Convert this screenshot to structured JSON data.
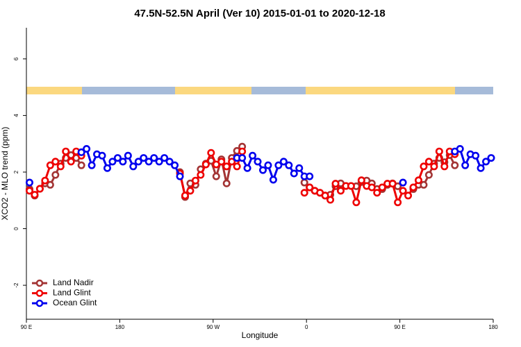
{
  "chart_data": {
    "type": "line",
    "title": "47.5N-52.5N April (Ver 10)   2015-01-01 to 2020-12-18",
    "x_label": "Longitude",
    "y_label": "XCO2 - MLO trend (ppm)",
    "xlim": [
      90,
      540
    ],
    "ylim": [
      -3.2,
      7.1
    ],
    "xticks": [
      {
        "value": 90,
        "label": "90 E"
      },
      {
        "value": 180,
        "label": "180"
      },
      {
        "value": 270,
        "label": "90 W"
      },
      {
        "value": 360,
        "label": "0"
      },
      {
        "value": 450,
        "label": "90 E"
      },
      {
        "value": 540,
        "label": "180"
      }
    ],
    "yticks": [
      -2,
      0,
      2,
      4,
      6
    ],
    "legend": "bottom-left",
    "x": [
      93,
      98,
      103,
      108,
      113,
      118,
      123,
      128,
      133,
      138,
      143,
      148,
      153,
      158,
      163,
      168,
      173,
      178,
      183,
      188,
      193,
      198,
      203,
      208,
      213,
      218,
      223,
      228,
      233,
      238,
      243,
      248,
      253,
      258,
      263,
      268,
      273,
      278,
      283,
      288,
      293,
      298,
      303,
      308,
      313,
      318,
      323,
      328,
      333,
      338,
      343,
      348,
      353,
      358,
      363,
      368,
      373,
      378,
      383,
      388,
      393,
      398,
      403,
      408,
      413,
      418,
      423,
      428,
      433,
      438,
      443,
      448,
      453,
      458,
      463,
      468,
      473,
      478,
      483,
      488,
      493,
      498,
      503,
      508,
      513,
      518,
      523,
      528,
      533,
      538
    ],
    "series": [
      {
        "name": "Land Nadir",
        "color": "#a33434",
        "values": [
          1.4,
          1.17,
          1.41,
          1.6,
          1.55,
          1.9,
          2.3,
          2.5,
          2.6,
          2.5,
          2.24,
          null,
          null,
          null,
          null,
          null,
          null,
          null,
          null,
          null,
          null,
          null,
          null,
          null,
          null,
          null,
          null,
          null,
          null,
          2.0,
          1.12,
          1.6,
          1.55,
          2.1,
          2.3,
          2.4,
          1.85,
          2.45,
          1.6,
          2.5,
          2.75,
          2.9,
          null,
          null,
          null,
          null,
          null,
          null,
          null,
          null,
          null,
          null,
          null,
          1.63,
          1.46,
          1.34,
          1.27,
          1.17,
          1.2,
          1.5,
          1.6,
          1.51,
          1.51,
          1.5,
          1.65,
          1.7,
          1.6,
          1.4,
          1.4,
          1.55,
          1.6,
          1.5,
          null,
          null,
          1.4,
          1.55,
          1.55,
          1.9,
          2.3,
          2.5,
          2.35,
          2.6,
          2.24,
          null,
          null,
          null,
          null,
          null,
          null,
          null
        ]
      },
      {
        "name": "Land Glint",
        "color": "#ee0000",
        "values": [
          1.34,
          1.2,
          1.41,
          1.7,
          2.24,
          2.37,
          2.2,
          2.73,
          2.37,
          2.73,
          2.58,
          null,
          null,
          null,
          null,
          null,
          null,
          null,
          null,
          null,
          null,
          null,
          null,
          null,
          null,
          null,
          null,
          null,
          null,
          1.95,
          1.17,
          1.34,
          1.7,
          1.9,
          2.27,
          2.68,
          2.27,
          2.37,
          2.2,
          2.37,
          2.2,
          2.73,
          null,
          null,
          null,
          null,
          null,
          null,
          null,
          null,
          null,
          null,
          null,
          1.27,
          1.46,
          1.34,
          1.27,
          1.17,
          1.02,
          1.59,
          1.34,
          1.51,
          1.51,
          0.93,
          1.71,
          1.51,
          1.46,
          1.27,
          1.46,
          1.59,
          1.59,
          0.93,
          1.34,
          1.17,
          1.46,
          1.71,
          2.2,
          2.37,
          2.2,
          2.73,
          2.2,
          2.73,
          2.63,
          null,
          null,
          null,
          null,
          null,
          null,
          null
        ]
      },
      {
        "name": "Ocean Glint",
        "color": "#0000ee",
        "values": [
          1.63,
          null,
          null,
          null,
          null,
          null,
          null,
          null,
          null,
          null,
          2.7,
          2.82,
          2.24,
          2.63,
          2.58,
          2.14,
          2.37,
          2.5,
          2.37,
          2.58,
          2.2,
          2.37,
          2.5,
          2.37,
          2.5,
          2.37,
          2.5,
          2.37,
          2.24,
          1.85,
          null,
          null,
          null,
          null,
          null,
          null,
          null,
          null,
          null,
          null,
          2.5,
          2.5,
          2.14,
          2.58,
          2.37,
          2.07,
          2.24,
          1.73,
          2.24,
          2.37,
          2.24,
          1.95,
          2.14,
          1.85,
          1.85,
          null,
          null,
          null,
          null,
          null,
          null,
          null,
          null,
          null,
          null,
          null,
          null,
          null,
          null,
          null,
          null,
          null,
          1.63,
          null,
          null,
          null,
          null,
          null,
          null,
          null,
          null,
          null,
          2.73,
          2.82,
          2.24,
          2.63,
          2.58,
          2.14,
          2.37,
          2.5
        ]
      }
    ]
  }
}
